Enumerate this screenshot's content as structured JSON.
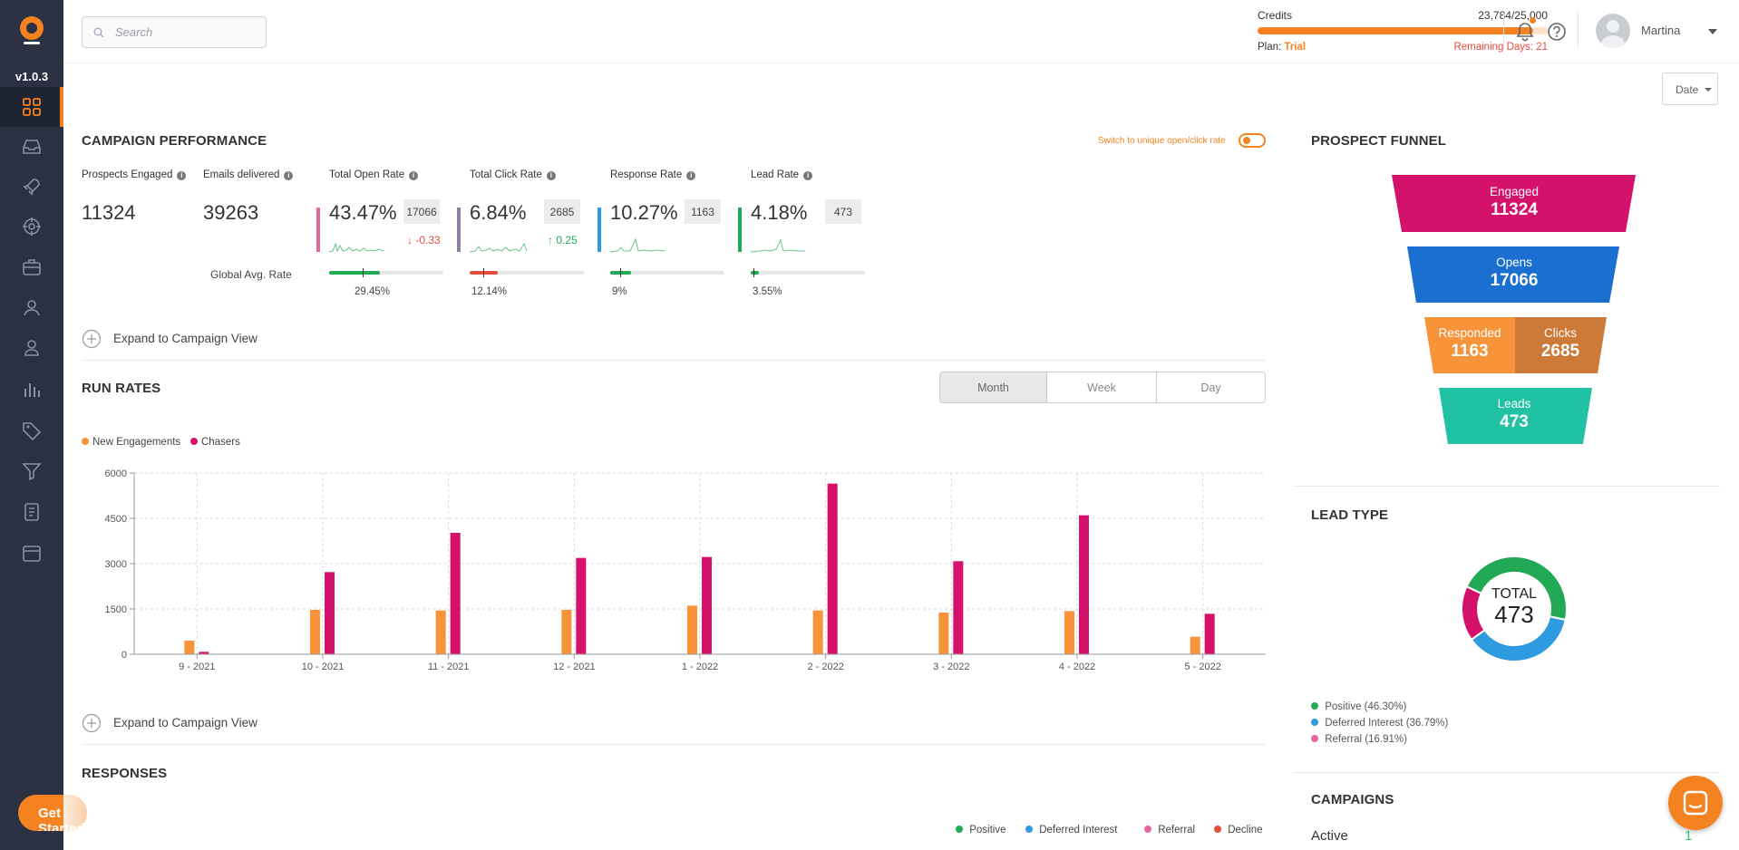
{
  "app": {
    "version": "v1.0.3",
    "get_started": "Get Started"
  },
  "colors": {
    "accent": "#f58220",
    "sidebar": "#2b3142",
    "engaged": "#d4126b",
    "opens": "#1a6fd1",
    "responded": "#f7943a",
    "clicks": "#cd7a38",
    "leads": "#21c1a4"
  },
  "sidebar": {
    "items": [
      {
        "icon": "dashboard-grid-icon"
      },
      {
        "icon": "inbox-icon"
      },
      {
        "icon": "rocket-icon"
      },
      {
        "icon": "target-icon"
      },
      {
        "icon": "briefcase-icon"
      },
      {
        "icon": "user-icon"
      },
      {
        "icon": "users-icon"
      },
      {
        "icon": "bar-chart-icon"
      },
      {
        "icon": "tag-icon"
      },
      {
        "icon": "filter-icon"
      },
      {
        "icon": "document-icon"
      },
      {
        "icon": "template-icon"
      }
    ]
  },
  "header": {
    "search_placeholder": "Search",
    "credits_label": "Credits",
    "credits_value": "23,784/25,000",
    "credits_used_fraction": 0.951,
    "plan_label": "Plan:",
    "plan_value": "Trial",
    "remaining": "Remaining Days: 21",
    "user": "Martina",
    "date_button": "Date"
  },
  "performance": {
    "title": "CAMPAIGN PERFORMANCE",
    "toggle_label": "Switch to unique open/click rate",
    "prospects_label": "Prospects Engaged",
    "prospects_value": "11324",
    "emails_label": "Emails delivered",
    "emails_value": "39263",
    "global_label": "Global Avg. Rate",
    "rates": [
      {
        "label": "Total Open Rate",
        "value": "43.47%",
        "count": "17066",
        "delta": "-0.33",
        "delta_dir": "down",
        "avg": "29.45%",
        "avg_fraction": 0.2945,
        "color": "#e5679f"
      },
      {
        "label": "Total Click Rate",
        "value": "6.84%",
        "count": "2685",
        "delta": "0.25",
        "delta_dir": "up",
        "avg": "12.14%",
        "avg_fraction": 0.1214,
        "color": "#8f7ea0"
      },
      {
        "label": "Response Rate",
        "value": "10.27%",
        "count": "1163",
        "delta": "",
        "delta_dir": "",
        "avg": "9%",
        "avg_fraction": 0.09,
        "color": "#2e9be0"
      },
      {
        "label": "Lead Rate",
        "value": "4.18%",
        "count": "473",
        "delta": "",
        "delta_dir": "",
        "avg": "3.55%",
        "avg_fraction": 0.0355,
        "color": "#22a955"
      }
    ],
    "expand_label": "Expand to Campaign View"
  },
  "run_rates": {
    "title": "RUN RATES",
    "tabs": [
      "Month",
      "Week",
      "Day"
    ],
    "active_tab": "Month",
    "expand_label": "Expand to Campaign View"
  },
  "chart_data": {
    "type": "bar",
    "categories": [
      "9 - 2021",
      "10 - 2021",
      "11 - 2021",
      "12 - 2021",
      "1 - 2022",
      "2 - 2022",
      "3 - 2022",
      "4 - 2022",
      "5 - 2022"
    ],
    "series": [
      {
        "name": "New Engagements",
        "color": "#f7943a",
        "values": [
          450,
          1470,
          1450,
          1470,
          1610,
          1450,
          1380,
          1430,
          580
        ]
      },
      {
        "name": "Chasers",
        "color": "#d4126b",
        "values": [
          80,
          2720,
          4020,
          3190,
          3220,
          5650,
          3080,
          4600,
          1340
        ]
      }
    ],
    "yticks": [
      0,
      1500,
      3000,
      4500,
      6000
    ],
    "ylim": [
      0,
      6000
    ],
    "grid": true,
    "legend": "top-left"
  },
  "responses": {
    "title": "RESPONSES",
    "legend": [
      {
        "label": "Positive",
        "color": "#22a955"
      },
      {
        "label": "Deferred Interest",
        "color": "#2e9be0"
      },
      {
        "label": "Referral",
        "color": "#e5679f"
      },
      {
        "label": "Decline",
        "color": "#e74c3c"
      }
    ]
  },
  "funnel": {
    "title": "PROSPECT FUNNEL",
    "engaged_label": "Engaged",
    "engaged_value": "11324",
    "opens_label": "Opens",
    "opens_value": "17066",
    "responded_label": "Responded",
    "responded_value": "1163",
    "clicks_label": "Clicks",
    "clicks_value": "2685",
    "leads_label": "Leads",
    "leads_value": "473"
  },
  "lead_type": {
    "title": "LEAD TYPE",
    "total_label": "TOTAL",
    "total_value": "473",
    "items": [
      {
        "label": "Positive (46.30%)",
        "percent": 46.3,
        "color": "#22a955"
      },
      {
        "label": "Deferred Interest (36.79%)",
        "percent": 36.79,
        "color": "#2e9be0"
      },
      {
        "label": "Referral (16.91%)",
        "percent": 16.91,
        "color": "#d4126b"
      }
    ]
  },
  "campaigns": {
    "title": "CAMPAIGNS",
    "active_label": "Active",
    "active_count": "1"
  }
}
